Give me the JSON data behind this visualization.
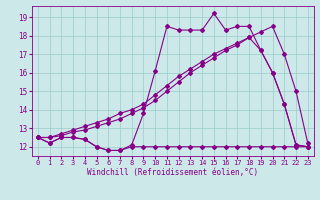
{
  "x_hours": [
    0,
    1,
    2,
    3,
    4,
    5,
    6,
    7,
    8,
    9,
    10,
    11,
    12,
    13,
    14,
    15,
    16,
    17,
    18,
    19,
    20,
    21,
    22,
    23
  ],
  "temp_line": [
    12.5,
    12.2,
    12.5,
    12.5,
    12.4,
    12.0,
    11.8,
    11.8,
    12.1,
    13.8,
    16.1,
    18.5,
    18.3,
    18.3,
    18.3,
    19.2,
    18.3,
    18.5,
    18.5,
    17.2,
    16.0,
    14.3,
    12.1,
    12.0
  ],
  "wind_line": [
    12.5,
    12.2,
    12.5,
    12.5,
    12.4,
    12.0,
    11.8,
    11.8,
    12.0,
    12.0,
    12.0,
    12.0,
    12.0,
    12.0,
    12.0,
    12.0,
    12.0,
    12.0,
    12.0,
    12.0,
    12.0,
    12.0,
    12.0,
    12.0
  ],
  "diag1": [
    12.5,
    12.5,
    12.6,
    12.8,
    12.9,
    13.1,
    13.3,
    13.5,
    13.8,
    14.1,
    14.5,
    15.0,
    15.5,
    16.0,
    16.4,
    16.8,
    17.2,
    17.5,
    17.9,
    18.2,
    18.5,
    17.0,
    15.0,
    12.2
  ],
  "diag2": [
    12.5,
    12.5,
    12.7,
    12.9,
    13.1,
    13.3,
    13.5,
    13.8,
    14.0,
    14.3,
    14.8,
    15.3,
    15.8,
    16.2,
    16.6,
    17.0,
    17.3,
    17.6,
    17.9,
    17.2,
    16.0,
    14.3,
    12.1,
    12.0
  ],
  "bg_color": "#cce8e8",
  "line_color": "#880088",
  "grid_color": "#99cccc",
  "xlabel": "Windchill (Refroidissement éolien,°C)",
  "ylim": [
    11.5,
    19.6
  ],
  "yticks": [
    12,
    13,
    14,
    15,
    16,
    17,
    18,
    19
  ],
  "xticks": [
    0,
    1,
    2,
    3,
    4,
    5,
    6,
    7,
    8,
    9,
    10,
    11,
    12,
    13,
    14,
    15,
    16,
    17,
    18,
    19,
    20,
    21,
    22,
    23
  ]
}
